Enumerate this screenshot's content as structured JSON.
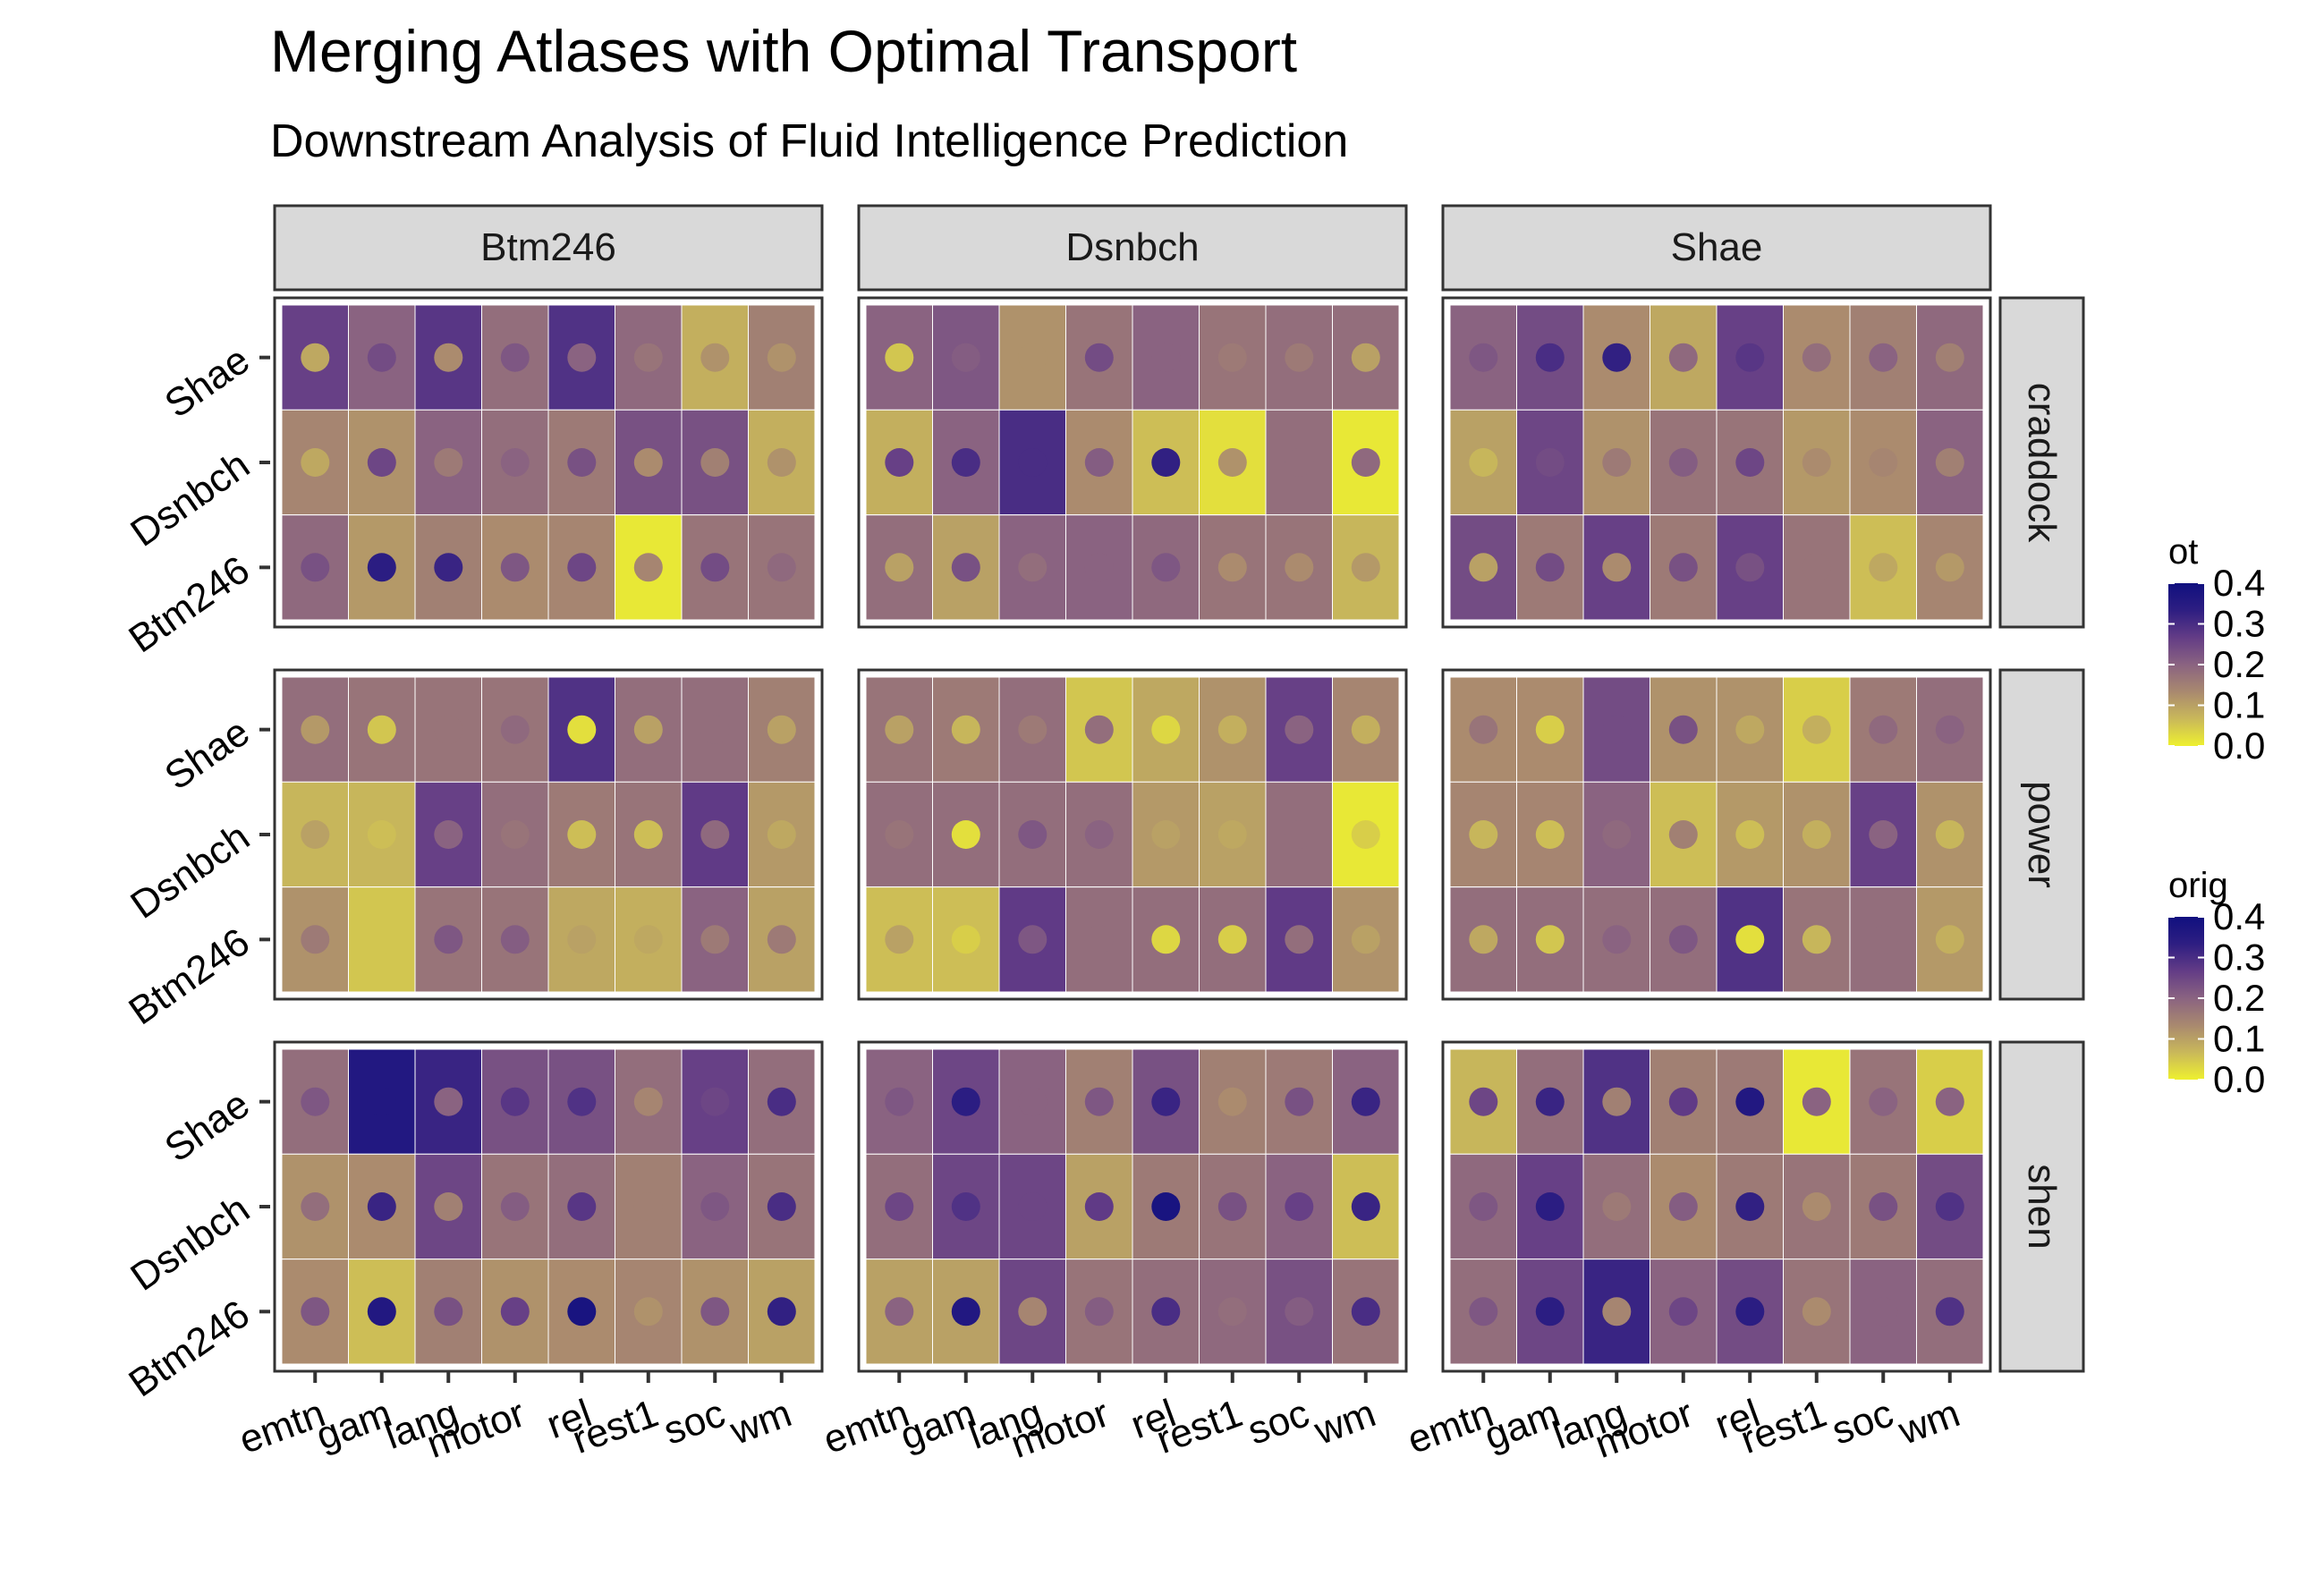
{
  "chart_data": {
    "type": "heatmap",
    "title": "Merging Atlases with Optimal Transport",
    "subtitle": "Downstream Analysis of Fluid Intelligence Prediction",
    "facet_cols": [
      "Btm246",
      "Dsnbch",
      "Shae"
    ],
    "facet_rows": [
      "craddock",
      "power",
      "shen"
    ],
    "x_categories": [
      "emtn",
      "gam",
      "lang",
      "motor",
      "rel",
      "rest1",
      "soc",
      "wm"
    ],
    "y_categories": [
      "Btm246",
      "Dsnbch",
      "Shae"
    ],
    "encoding": {
      "tile_fill": "ot",
      "point_color": "orig"
    },
    "legends": [
      {
        "title": "ot",
        "ticks": [
          "0.4",
          "0.3",
          "0.2",
          "0.1",
          "0.0"
        ],
        "tick_values": [
          0.4,
          0.3,
          0.2,
          0.1,
          0.0
        ],
        "range": [
          0,
          0.4
        ]
      },
      {
        "title": "orig",
        "ticks": [
          "0.4",
          "0.3",
          "0.2",
          "0.1",
          "0.0"
        ],
        "tick_values": [
          0.4,
          0.3,
          0.2,
          0.1,
          0.0
        ],
        "range": [
          0,
          0.4
        ]
      }
    ],
    "color_scale": [
      "#EEF030",
      "#C9B85A",
      "#A9896F",
      "#8A6381",
      "#633C86",
      "#2E1E82",
      "#10107F"
    ],
    "panels": [
      {
        "col": "Btm246",
        "row": "craddock",
        "ot": {
          "Shae": [
            0.26,
            0.2,
            0.28,
            0.18,
            0.29,
            0.19,
            0.08,
            0.15
          ],
          "Dsnbch": [
            0.14,
            0.12,
            0.2,
            0.18,
            0.16,
            0.23,
            0.23,
            0.08
          ],
          "Btm246": [
            0.19,
            0.11,
            0.15,
            0.13,
            0.14,
            0.01,
            0.17,
            0.17
          ]
        },
        "orig": {
          "Shae": [
            0.09,
            0.24,
            0.13,
            0.22,
            0.2,
            0.17,
            0.12,
            0.12
          ],
          "Dsnbch": [
            0.09,
            0.25,
            0.16,
            0.2,
            0.23,
            0.13,
            0.15,
            0.12
          ],
          "Btm246": [
            0.23,
            0.34,
            0.32,
            0.22,
            0.25,
            0.14,
            0.24,
            0.19
          ]
        }
      },
      {
        "col": "Dsnbch",
        "row": "craddock",
        "ot": {
          "Shae": [
            0.2,
            0.22,
            0.12,
            0.17,
            0.2,
            0.17,
            0.18,
            0.18
          ],
          "Dsnbch": [
            0.08,
            0.2,
            0.3,
            0.13,
            0.06,
            0.02,
            0.18,
            0.01
          ],
          "Btm246": [
            0.18,
            0.1,
            0.2,
            0.2,
            0.19,
            0.17,
            0.17,
            0.07
          ]
        },
        "orig": {
          "Shae": [
            0.05,
            0.21,
            0.12,
            0.24,
            0.2,
            0.16,
            0.16,
            0.1
          ],
          "Dsnbch": [
            0.26,
            0.3,
            0.3,
            0.21,
            0.33,
            0.12,
            0.18,
            0.19
          ],
          "Btm246": [
            0.1,
            0.23,
            0.18,
            0.2,
            0.22,
            0.13,
            0.13,
            0.11
          ]
        }
      },
      {
        "col": "Shae",
        "row": "craddock",
        "ot": {
          "Shae": [
            0.2,
            0.24,
            0.13,
            0.09,
            0.26,
            0.13,
            0.15,
            0.19
          ],
          "Dsnbch": [
            0.1,
            0.25,
            0.12,
            0.17,
            0.17,
            0.11,
            0.13,
            0.2
          ],
          "Btm246": [
            0.24,
            0.16,
            0.26,
            0.16,
            0.26,
            0.17,
            0.06,
            0.14
          ]
        },
        "orig": {
          "Shae": [
            0.22,
            0.3,
            0.33,
            0.19,
            0.28,
            0.18,
            0.2,
            0.15
          ],
          "Dsnbch": [
            0.07,
            0.24,
            0.16,
            0.21,
            0.25,
            0.13,
            0.14,
            0.15
          ],
          "Btm246": [
            0.1,
            0.24,
            0.13,
            0.23,
            0.23,
            0.17,
            0.09,
            0.11
          ]
        }
      },
      {
        "col": "Btm246",
        "row": "power",
        "ot": {
          "Shae": [
            0.18,
            0.17,
            0.17,
            0.17,
            0.29,
            0.18,
            0.18,
            0.15
          ],
          "Dsnbch": [
            0.07,
            0.07,
            0.26,
            0.18,
            0.16,
            0.17,
            0.27,
            0.11
          ],
          "Btm246": [
            0.12,
            0.05,
            0.17,
            0.17,
            0.09,
            0.08,
            0.2,
            0.1
          ]
        },
        "orig": {
          "Shae": [
            0.11,
            0.05,
            0.17,
            0.19,
            0.02,
            0.1,
            0.18,
            0.1
          ],
          "Dsnbch": [
            0.1,
            0.06,
            0.2,
            0.17,
            0.06,
            0.06,
            0.19,
            0.09
          ],
          "Btm246": [
            0.16,
            0.05,
            0.22,
            0.21,
            0.1,
            0.09,
            0.16,
            0.16
          ]
        }
      },
      {
        "col": "Dsnbch",
        "row": "power",
        "ot": {
          "Shae": [
            0.17,
            0.16,
            0.18,
            0.05,
            0.09,
            0.12,
            0.26,
            0.14
          ],
          "Dsnbch": [
            0.18,
            0.18,
            0.18,
            0.18,
            0.11,
            0.1,
            0.18,
            0.01
          ],
          "Btm246": [
            0.06,
            0.06,
            0.27,
            0.18,
            0.18,
            0.18,
            0.27,
            0.12
          ]
        },
        "orig": {
          "Shae": [
            0.1,
            0.07,
            0.16,
            0.18,
            0.03,
            0.08,
            0.2,
            0.08
          ],
          "Dsnbch": [
            0.17,
            0.02,
            0.22,
            0.2,
            0.1,
            0.09,
            0.18,
            0.04
          ],
          "Btm246": [
            0.1,
            0.04,
            0.22,
            0.18,
            0.03,
            0.04,
            0.18,
            0.1
          ]
        }
      },
      {
        "col": "Shae",
        "row": "power",
        "ot": {
          "Shae": [
            0.13,
            0.13,
            0.24,
            0.12,
            0.12,
            0.04,
            0.16,
            0.18
          ],
          "Dsnbch": [
            0.14,
            0.14,
            0.2,
            0.06,
            0.11,
            0.12,
            0.26,
            0.12
          ],
          "Btm246": [
            0.18,
            0.18,
            0.18,
            0.18,
            0.29,
            0.17,
            0.18,
            0.11
          ]
        },
        "orig": {
          "Shae": [
            0.17,
            0.04,
            0.24,
            0.23,
            0.09,
            0.08,
            0.19,
            0.2
          ],
          "Dsnbch": [
            0.07,
            0.06,
            0.19,
            0.15,
            0.06,
            0.08,
            0.2,
            0.07
          ],
          "Btm246": [
            0.09,
            0.05,
            0.2,
            0.22,
            0.02,
            0.07,
            0.18,
            0.08
          ]
        }
      },
      {
        "col": "Btm246",
        "row": "shen",
        "ot": {
          "Shae": [
            0.18,
            0.36,
            0.32,
            0.23,
            0.23,
            0.18,
            0.26,
            0.18
          ],
          "Dsnbch": [
            0.12,
            0.13,
            0.25,
            0.17,
            0.18,
            0.15,
            0.2,
            0.17
          ],
          "Btm246": [
            0.13,
            0.06,
            0.15,
            0.12,
            0.13,
            0.14,
            0.12,
            0.1
          ]
        },
        "orig": {
          "Shae": [
            0.22,
            0.36,
            0.2,
            0.28,
            0.29,
            0.14,
            0.25,
            0.3
          ],
          "Dsnbch": [
            0.18,
            0.32,
            0.15,
            0.21,
            0.28,
            0.15,
            0.22,
            0.3
          ],
          "Btm246": [
            0.22,
            0.36,
            0.23,
            0.26,
            0.38,
            0.12,
            0.22,
            0.33
          ]
        }
      },
      {
        "col": "Dsnbch",
        "row": "shen",
        "ot": {
          "Shae": [
            0.2,
            0.25,
            0.2,
            0.15,
            0.23,
            0.15,
            0.16,
            0.2
          ],
          "Dsnbch": [
            0.18,
            0.25,
            0.25,
            0.1,
            0.16,
            0.17,
            0.2,
            0.06
          ],
          "Btm246": [
            0.1,
            0.1,
            0.25,
            0.17,
            0.18,
            0.19,
            0.23,
            0.17
          ]
        },
        "orig": {
          "Shae": [
            0.22,
            0.34,
            0.2,
            0.22,
            0.32,
            0.13,
            0.23,
            0.32
          ],
          "Dsnbch": [
            0.25,
            0.29,
            0.25,
            0.27,
            0.38,
            0.23,
            0.26,
            0.32
          ],
          "Btm246": [
            0.2,
            0.36,
            0.14,
            0.21,
            0.3,
            0.18,
            0.21,
            0.3
          ]
        }
      },
      {
        "col": "Shae",
        "row": "shen",
        "ot": {
          "Shae": [
            0.07,
            0.18,
            0.29,
            0.15,
            0.16,
            0.01,
            0.17,
            0.04
          ],
          "Dsnbch": [
            0.19,
            0.26,
            0.18,
            0.13,
            0.16,
            0.17,
            0.16,
            0.24
          ],
          "Btm246": [
            0.18,
            0.25,
            0.32,
            0.2,
            0.24,
            0.17,
            0.2,
            0.18
          ]
        },
        "orig": {
          "Shae": [
            0.25,
            0.32,
            0.15,
            0.27,
            0.36,
            0.2,
            0.2,
            0.2
          ],
          "Dsnbch": [
            0.22,
            0.34,
            0.16,
            0.21,
            0.33,
            0.13,
            0.23,
            0.29
          ],
          "Btm246": [
            0.22,
            0.34,
            0.14,
            0.25,
            0.34,
            0.13,
            0.2,
            0.29
          ]
        }
      }
    ]
  }
}
